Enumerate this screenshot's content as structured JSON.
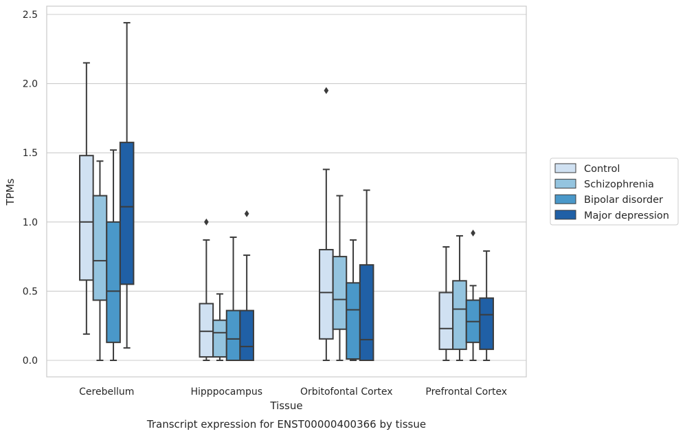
{
  "chart_data": {
    "type": "box",
    "title": "",
    "xlabel": "Tissue",
    "ylabel": "TPMs",
    "caption": "Transcript expression for ENST00000400366 by tissue",
    "ylim": [
      -0.12,
      2.57
    ],
    "yticks": [
      "0.0",
      "0.5",
      "1.0",
      "1.5",
      "2.0",
      "2.5"
    ],
    "ytick_values": [
      0,
      0.5,
      1.0,
      1.5,
      2.0,
      2.5
    ],
    "grid": true,
    "legend_position": "right",
    "categories": [
      "Cerebellum",
      "Hipppocampus",
      "Orbitofontal Cortex",
      "Prefrontal Cortex"
    ],
    "series": [
      {
        "name": "Control",
        "color": "#d0e1f2",
        "boxes": [
          {
            "min": 0.19,
            "q1": 0.58,
            "median": 1.0,
            "q3": 1.48,
            "max": 2.15,
            "outliers": []
          },
          {
            "min": 0.0,
            "q1": 0.025,
            "median": 0.21,
            "q3": 0.41,
            "max": 0.87,
            "outliers": [
              1.0
            ]
          },
          {
            "min": 0.0,
            "q1": 0.155,
            "median": 0.49,
            "q3": 0.8,
            "max": 1.38,
            "outliers": [
              1.95
            ]
          },
          {
            "min": 0.0,
            "q1": 0.08,
            "median": 0.23,
            "q3": 0.49,
            "max": 0.82,
            "outliers": []
          }
        ]
      },
      {
        "name": "Schizophrenia",
        "color": "#94c4df",
        "boxes": [
          {
            "min": 0.0,
            "q1": 0.435,
            "median": 0.72,
            "q3": 1.19,
            "max": 1.44,
            "outliers": []
          },
          {
            "min": 0.0,
            "q1": 0.025,
            "median": 0.2,
            "q3": 0.29,
            "max": 0.48,
            "outliers": []
          },
          {
            "min": 0.0,
            "q1": 0.225,
            "median": 0.44,
            "q3": 0.75,
            "max": 1.19,
            "outliers": []
          },
          {
            "min": 0.0,
            "q1": 0.08,
            "median": 0.37,
            "q3": 0.575,
            "max": 0.9,
            "outliers": []
          }
        ]
      },
      {
        "name": "Bipolar disorder",
        "color": "#4a98c9",
        "boxes": [
          {
            "min": 0.0,
            "q1": 0.13,
            "median": 0.5,
            "q3": 1.0,
            "max": 1.52,
            "outliers": []
          },
          {
            "min": 0.0,
            "q1": 0.0,
            "median": 0.155,
            "q3": 0.36,
            "max": 0.89,
            "outliers": []
          },
          {
            "min": 0.0,
            "q1": 0.01,
            "median": 0.365,
            "q3": 0.56,
            "max": 0.87,
            "outliers": []
          },
          {
            "min": 0.0,
            "q1": 0.13,
            "median": 0.28,
            "q3": 0.435,
            "max": 0.54,
            "outliers": [
              0.92
            ]
          }
        ]
      },
      {
        "name": "Major depression",
        "color": "#2060a6",
        "boxes": [
          {
            "min": 0.09,
            "q1": 0.55,
            "median": 1.11,
            "q3": 1.575,
            "max": 2.44,
            "outliers": []
          },
          {
            "min": 0.0,
            "q1": 0.0,
            "median": 0.1,
            "q3": 0.36,
            "max": 0.76,
            "outliers": [
              1.06
            ]
          },
          {
            "min": 0.0,
            "q1": 0.0,
            "median": 0.15,
            "q3": 0.69,
            "max": 1.23,
            "outliers": []
          },
          {
            "min": 0.0,
            "q1": 0.08,
            "median": 0.33,
            "q3": 0.45,
            "max": 0.79,
            "outliers": []
          }
        ]
      }
    ]
  }
}
